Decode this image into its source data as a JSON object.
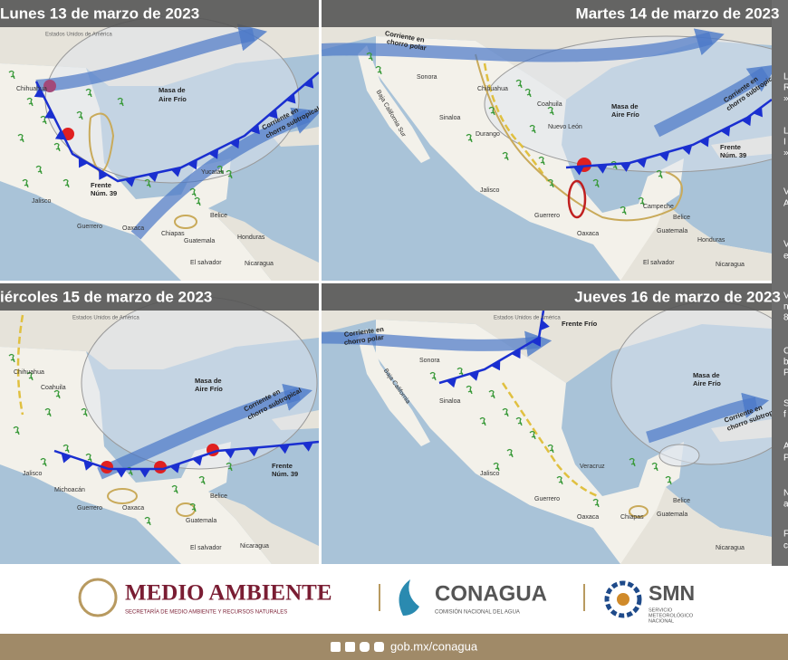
{
  "panels": [
    {
      "title": "Lunes 13 de marzo de 2023",
      "labels": [
        "Estados Unidos de América",
        "Chihuahua",
        "Masa de",
        "Aire Frío",
        "Corriente en",
        "chorro subtropical",
        "Frente",
        "Núm. 39",
        "Jalisco",
        "Guerrero",
        "Oaxaca",
        "Chiapas",
        "Guatemala",
        "Belice",
        "Honduras",
        "El salvador",
        "Nicaragua",
        "Yucatán"
      ]
    },
    {
      "title": "Martes 14 de marzo de 2023",
      "labels": [
        "Corriente en",
        "chorro polar",
        "Sonora",
        "Chihuahua",
        "Coahuila",
        "Nuevo León",
        "Durango",
        "Sinaloa",
        "Baja California Sur",
        "Masa de",
        "Aire Frío",
        "Corriente en",
        "chorro subtropical",
        "Frente",
        "Núm. 39",
        "Jalisco",
        "Guerrero",
        "Oaxaca",
        "Campeche",
        "Belice",
        "Guatemala",
        "Honduras",
        "El salvador",
        "Nicaragua"
      ]
    },
    {
      "title": "iércoles 15 de marzo de 2023",
      "labels": [
        "Estados Unidos de América",
        "Chihuahua",
        "Coahuila",
        "Masa de",
        "Aire Frío",
        "Corriente en",
        "chorro subtropical",
        "Frente",
        "Núm. 39",
        "Jalisco",
        "Michoacán",
        "Guerrero",
        "Oaxaca",
        "Belice",
        "Guatemala",
        "El salvador",
        "Nicaragua"
      ]
    },
    {
      "title": "Jueves 16 de marzo de 2023",
      "labels": [
        "Estados Unidos de América",
        "Corriente en",
        "chorro polar",
        "Frente Frío",
        "Sonora",
        "Baja California",
        "Sinaloa",
        "Jalisco",
        "Veracruz",
        "Guerrero",
        "Oaxaca",
        "Chiapas",
        "Masa de",
        "Aire Frío",
        "Corriente en",
        "chorro subtropical",
        "Belice",
        "Guatemala",
        "Nicaragua"
      ]
    }
  ],
  "side_text": [
    "L",
    "R",
    "»",
    "L",
    "I",
    "»",
    "V",
    "A",
    "V",
    "e",
    "V",
    "n",
    "8",
    "C",
    "b",
    "P",
    "S",
    "f",
    "A",
    "P",
    "N",
    "a",
    "F",
    "c"
  ],
  "footer": {
    "medio_ambiente": {
      "name": "MEDIO AMBIENTE",
      "subtitle": "SECRETARÍA DE MEDIO AMBIENTE Y RECURSOS NATURALES"
    },
    "conagua": {
      "name": "CONAGUA",
      "subtitle": "COMISIÓN NACIONAL DEL AGUA"
    },
    "smn": {
      "name": "SMN",
      "subtitle": [
        "SERVICIO",
        "METEOROLÓGICO",
        "NACIONAL"
      ]
    },
    "url": "gob.mx/conagua"
  }
}
